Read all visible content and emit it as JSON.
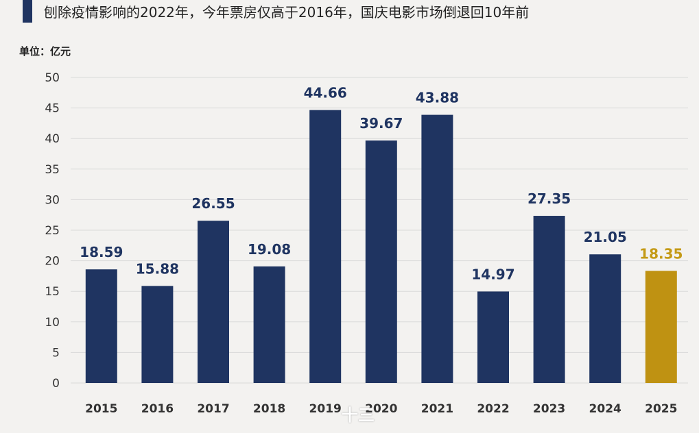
{
  "header": {
    "title": "刨除疫情影响的2022年，今年票房仅高于2016年，国庆电影市场倒退回10年前",
    "unit": "单位：亿元"
  },
  "watermark": {
    "bottom_text": "十三"
  },
  "colors": {
    "bar": "#1f3461",
    "highlight": "#bf9212",
    "value_text": "#1f3461",
    "highlight_text": "#c49a16",
    "grid": "#d9d9d9"
  },
  "chart_data": {
    "type": "bar",
    "title": "刨除疫情影响的2022年，今年票房仅高于2016年，国庆电影市场倒退回10年前",
    "ylabel": "单位：亿元",
    "categories": [
      "2015",
      "2016",
      "2017",
      "2018",
      "2019",
      "2020",
      "2021",
      "2022",
      "2023",
      "2024",
      "2025"
    ],
    "values": [
      18.59,
      15.88,
      26.55,
      19.08,
      44.66,
      39.67,
      43.88,
      14.97,
      27.35,
      21.05,
      18.35
    ],
    "value_labels": [
      "18.59",
      "15.88",
      "26.55",
      "19.08",
      "44.66",
      "39.67",
      "43.88",
      "14.97",
      "27.35",
      "21.05",
      "18.35"
    ],
    "highlight_index": 10,
    "ylim": [
      0,
      50
    ],
    "yticks": [
      "0",
      "5",
      "10",
      "15",
      "20",
      "25",
      "30",
      "35",
      "40",
      "45",
      "50"
    ],
    "grid": true,
    "legend": "none"
  }
}
